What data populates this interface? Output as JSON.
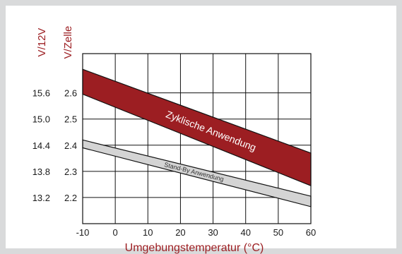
{
  "chart_data": {
    "type": "area",
    "xlabel": "Umgebungstemperatur (°C)",
    "ylabels": [
      "V/12V",
      "V/Zelle"
    ],
    "x_ticks": [
      "-10",
      "0",
      "10",
      "20",
      "30",
      "40",
      "50",
      "60"
    ],
    "y_ticks_cell": [
      "2.6",
      "2.5",
      "2.4",
      "2.3",
      "2.2"
    ],
    "y_ticks_12v": [
      "15.6",
      "15.0",
      "14.4",
      "13.8",
      "13.2"
    ],
    "xlim": [
      -10,
      60
    ],
    "ylim_cell": [
      2.1,
      2.75
    ],
    "grid": true,
    "series": [
      {
        "name": "Zyklische Anwendung",
        "color": "#9c1e22",
        "x": [
          -10,
          60
        ],
        "upper": [
          2.69,
          2.37
        ],
        "lower": [
          2.595,
          2.245
        ]
      },
      {
        "name": "Stand-By Anwendung",
        "color": "#d4d4d4",
        "x": [
          -10,
          60
        ],
        "upper": [
          2.42,
          2.205
        ],
        "lower": [
          2.39,
          2.165
        ]
      }
    ]
  }
}
